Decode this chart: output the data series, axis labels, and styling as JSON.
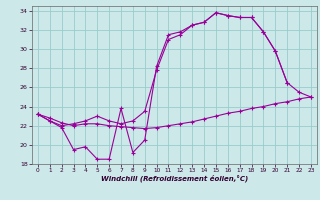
{
  "xlabel": "Windchill (Refroidissement éolien,°C)",
  "bg_color": "#cce8e8",
  "grid_color": "#99cccc",
  "line_color": "#990099",
  "xlim": [
    -0.5,
    23.5
  ],
  "ylim": [
    18,
    34.5
  ],
  "xticks": [
    0,
    1,
    2,
    3,
    4,
    5,
    6,
    7,
    8,
    9,
    10,
    11,
    12,
    13,
    14,
    15,
    16,
    17,
    18,
    19,
    20,
    21,
    22,
    23
  ],
  "yticks": [
    18,
    20,
    22,
    24,
    26,
    28,
    30,
    32,
    34
  ],
  "curve1_x": [
    0,
    1,
    2,
    3,
    4,
    5,
    6,
    7,
    8,
    9,
    10,
    11,
    12,
    13,
    14,
    15,
    16,
    17,
    18,
    19,
    20,
    21
  ],
  "curve1_y": [
    23.2,
    22.5,
    21.8,
    19.5,
    19.8,
    18.5,
    18.5,
    23.8,
    19.2,
    20.5,
    28.2,
    31.5,
    31.8,
    32.5,
    32.8,
    33.8,
    33.5,
    33.3,
    33.3,
    31.8,
    29.8,
    26.5
  ],
  "curve2_x": [
    0,
    1,
    2,
    3,
    4,
    5,
    6,
    7,
    8,
    9,
    10,
    11,
    12,
    13,
    14,
    15,
    16,
    17,
    18,
    19,
    20,
    21,
    22,
    23
  ],
  "curve2_y": [
    23.2,
    22.5,
    22.0,
    22.2,
    22.5,
    23.0,
    22.5,
    22.2,
    22.5,
    23.5,
    27.8,
    31.0,
    31.5,
    32.5,
    32.8,
    33.8,
    33.5,
    33.3,
    33.3,
    31.8,
    29.8,
    26.5,
    25.5,
    25.0
  ],
  "curve3_x": [
    0,
    1,
    2,
    3,
    4,
    5,
    6,
    7,
    8,
    9,
    10,
    11,
    12,
    13,
    14,
    15,
    16,
    17,
    18,
    19,
    20,
    21,
    22,
    23
  ],
  "curve3_y": [
    23.2,
    22.8,
    22.3,
    22.0,
    22.2,
    22.2,
    22.0,
    21.9,
    21.8,
    21.7,
    21.8,
    22.0,
    22.2,
    22.4,
    22.7,
    23.0,
    23.3,
    23.5,
    23.8,
    24.0,
    24.3,
    24.5,
    24.8,
    25.0
  ]
}
